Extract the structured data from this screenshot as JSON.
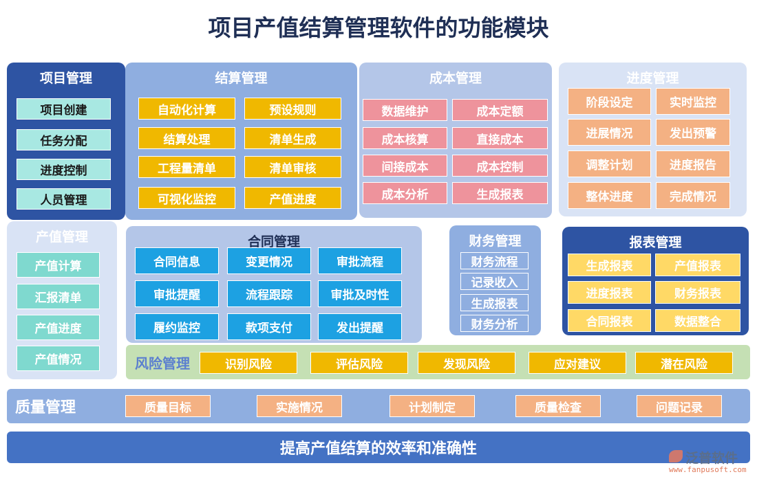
{
  "title": "项目产值结算管理软件的功能模块",
  "colors": {
    "dark_blue": "#2e54a3",
    "mid_blue": "#8faee0",
    "light_blue": "#b4c6e8",
    "pale_blue": "#d9e3f5",
    "yellow": "#f0b800",
    "pink": "#ee939c",
    "orange": "#f4b183",
    "cyan": "#a8e8e2",
    "teal": "#7fd9cf",
    "sky": "#1da1e2",
    "gold": "#ffd966",
    "green": "#c5e0b4",
    "bottom": "#4472c4"
  },
  "project": {
    "title": "项目管理",
    "items": [
      "项目创建",
      "任务分配",
      "进度控制",
      "人员管理"
    ]
  },
  "settlement": {
    "title": "结算管理",
    "items": [
      "自动化计算",
      "预设规则",
      "结算处理",
      "清单生成",
      "工程量清单",
      "清单审核",
      "可视化监控",
      "产值进度"
    ]
  },
  "cost": {
    "title": "成本管理",
    "items": [
      "数据维护",
      "成本定额",
      "成本核算",
      "直接成本",
      "间接成本",
      "成本控制",
      "成本分析",
      "生成报表"
    ]
  },
  "schedule": {
    "title": "进度管理",
    "items": [
      "阶段设定",
      "实时监控",
      "进展情况",
      "发出预警",
      "调整计划",
      "进度报告",
      "整体进度",
      "完成情况"
    ]
  },
  "output": {
    "title": "产值管理",
    "items": [
      "产值计算",
      "汇报清单",
      "产值进度",
      "产值情况"
    ]
  },
  "contract": {
    "title": "合同管理",
    "items": [
      "合同信息",
      "变更情况",
      "审批流程",
      "审批提醒",
      "流程跟踪",
      "审批及时性",
      "履约监控",
      "款项支付",
      "发出提醒"
    ]
  },
  "finance": {
    "title": "财务管理",
    "items": [
      "财务流程",
      "记录收入",
      "生成报表",
      "财务分析"
    ]
  },
  "report": {
    "title": "报表管理",
    "items": [
      "生成报表",
      "产值报表",
      "进度报表",
      "财务报表",
      "合同报表",
      "数据整合"
    ]
  },
  "risk": {
    "title": "风险管理",
    "items": [
      "识别风险",
      "评估风险",
      "发现风险",
      "应对建议",
      "潜在风险"
    ]
  },
  "quality": {
    "title": "质量管理",
    "items": [
      "质量目标",
      "实施情况",
      "计划制定",
      "质量检查",
      "问题记录"
    ]
  },
  "footer": "提高产值结算的效率和准确性",
  "logo": {
    "name": "泛普软件",
    "url": "www.fanpusoft.com"
  }
}
